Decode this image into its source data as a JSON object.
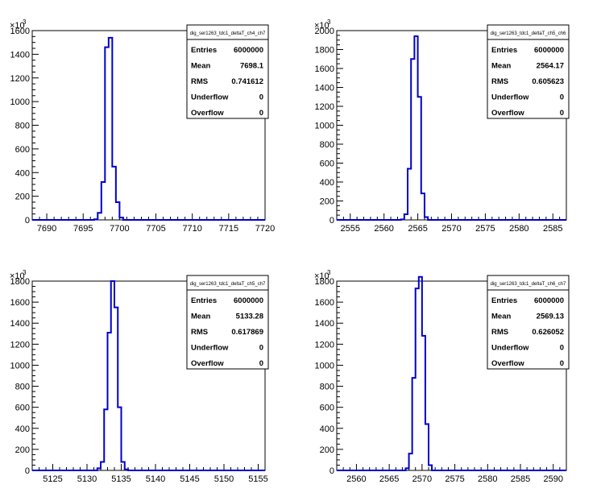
{
  "chart_data": [
    {
      "type": "bar",
      "stats_title": "dig_ser1263_tdc1_deltaT_ch4_ch7",
      "stats": [
        {
          "label": "Entries",
          "value": "6000000"
        },
        {
          "label": "Mean",
          "value": "7698.1"
        },
        {
          "label": "RMS",
          "value": "0.741612"
        },
        {
          "label": "Underflow",
          "value": "0"
        },
        {
          "label": "Overflow",
          "value": "0"
        }
      ],
      "xlim": [
        7688,
        7720
      ],
      "ylim": [
        0,
        1600
      ],
      "x_ticks": [
        7690,
        7695,
        7700,
        7705,
        7710,
        7715,
        7720
      ],
      "y_ticks": [
        0,
        200,
        400,
        600,
        800,
        1000,
        1200,
        1400,
        1600
      ],
      "y_exponent": "10",
      "y_exponent_power": "3",
      "bin_width": 0.5,
      "bins": [
        [
          7696.5,
          5
        ],
        [
          7697.0,
          60
        ],
        [
          7697.5,
          320
        ],
        [
          7698.0,
          1460
        ],
        [
          7698.5,
          1540
        ],
        [
          7699.0,
          450
        ],
        [
          7699.5,
          150
        ],
        [
          7700.0,
          20
        ]
      ]
    },
    {
      "type": "bar",
      "stats_title": "dig_ser1263_tdc1_deltaT_ch5_ch6",
      "stats": [
        {
          "label": "Entries",
          "value": "6000000"
        },
        {
          "label": "Mean",
          "value": "2564.17"
        },
        {
          "label": "RMS",
          "value": "0.605623"
        },
        {
          "label": "Underflow",
          "value": "0"
        },
        {
          "label": "Overflow",
          "value": "0"
        }
      ],
      "xlim": [
        2553,
        2587
      ],
      "ylim": [
        0,
        2000
      ],
      "x_ticks": [
        2555,
        2560,
        2565,
        2570,
        2575,
        2580,
        2585
      ],
      "y_ticks": [
        0,
        200,
        400,
        600,
        800,
        1000,
        1200,
        1400,
        1600,
        1800,
        2000
      ],
      "y_exponent": "10",
      "y_exponent_power": "3",
      "bin_width": 0.5,
      "bins": [
        [
          2562.5,
          5
        ],
        [
          2563.0,
          60
        ],
        [
          2563.5,
          540
        ],
        [
          2564.0,
          1700
        ],
        [
          2564.5,
          1940
        ],
        [
          2565.0,
          1300
        ],
        [
          2565.5,
          280
        ],
        [
          2566.0,
          30
        ]
      ]
    },
    {
      "type": "bar",
      "stats_title": "dig_ser1263_tdc1_deltaT_ch5_ch7",
      "stats": [
        {
          "label": "Entries",
          "value": "6000000"
        },
        {
          "label": "Mean",
          "value": "5133.28"
        },
        {
          "label": "RMS",
          "value": "0.617869"
        },
        {
          "label": "Underflow",
          "value": "0"
        },
        {
          "label": "Overflow",
          "value": "0"
        }
      ],
      "xlim": [
        5122,
        5156
      ],
      "ylim": [
        0,
        1800
      ],
      "x_ticks": [
        5125,
        5130,
        5135,
        5140,
        5145,
        5150,
        5155
      ],
      "y_ticks": [
        0,
        200,
        400,
        600,
        800,
        1000,
        1200,
        1400,
        1600,
        1800
      ],
      "y_exponent": "10",
      "y_exponent_power": "3",
      "bin_width": 0.5,
      "bins": [
        [
          5131.5,
          20
        ],
        [
          5132.0,
          80
        ],
        [
          5132.5,
          580
        ],
        [
          5133.0,
          1310
        ],
        [
          5133.5,
          1800
        ],
        [
          5134.0,
          1550
        ],
        [
          5134.5,
          600
        ],
        [
          5135.0,
          80
        ],
        [
          5135.5,
          10
        ]
      ]
    },
    {
      "type": "bar",
      "stats_title": "dig_ser1263_tdc1_deltaT_ch6_ch7",
      "stats": [
        {
          "label": "Entries",
          "value": "6000000"
        },
        {
          "label": "Mean",
          "value": "2569.13"
        },
        {
          "label": "RMS",
          "value": "0.626052"
        },
        {
          "label": "Underflow",
          "value": "0"
        },
        {
          "label": "Overflow",
          "value": "0"
        }
      ],
      "xlim": [
        2557,
        2592
      ],
      "ylim": [
        0,
        1800
      ],
      "x_ticks": [
        2560,
        2565,
        2570,
        2575,
        2580,
        2585,
        2590
      ],
      "y_ticks": [
        0,
        200,
        400,
        600,
        800,
        1000,
        1200,
        1400,
        1600,
        1800
      ],
      "y_exponent": "10",
      "y_exponent_power": "3",
      "bin_width": 0.5,
      "bins": [
        [
          2567.5,
          20
        ],
        [
          2568.0,
          160
        ],
        [
          2568.5,
          880
        ],
        [
          2569.0,
          1730
        ],
        [
          2569.5,
          1840
        ],
        [
          2570.0,
          1280
        ],
        [
          2570.5,
          440
        ],
        [
          2571.0,
          50
        ]
      ]
    }
  ]
}
